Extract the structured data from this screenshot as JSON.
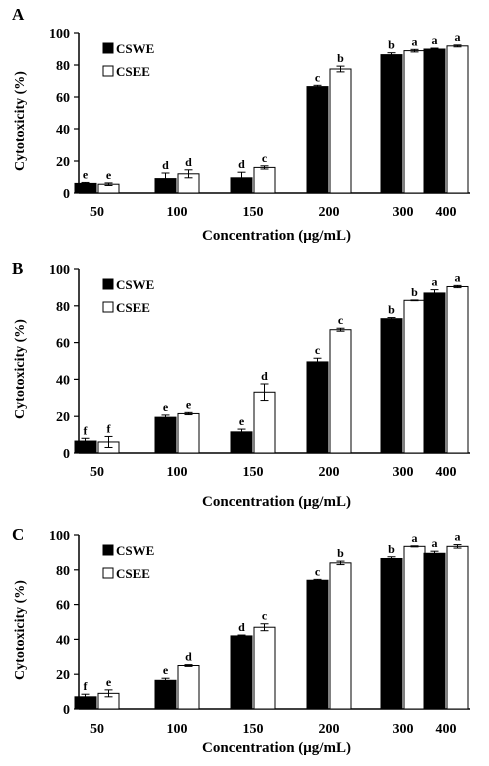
{
  "chart_data": [
    {
      "panel": "A",
      "type": "bar",
      "categories": [
        "50",
        "100",
        "150",
        "200",
        "300",
        "400"
      ],
      "series": [
        {
          "name": "CSWE",
          "color": "#000000",
          "values": [
            6,
            9,
            9.5,
            66.5,
            86.5,
            90
          ],
          "errors": [
            0.6,
            3.5,
            3.5,
            0.8,
            1.2,
            0.6
          ],
          "letters": [
            "e",
            "d",
            "d",
            "c",
            "b",
            "a"
          ]
        },
        {
          "name": "CSEE",
          "color": "#ffffff",
          "values": [
            5.5,
            12,
            16,
            77.5,
            89,
            92
          ],
          "errors": [
            0.8,
            2.5,
            1.0,
            1.8,
            0.8,
            0.6
          ],
          "letters": [
            "e",
            "d",
            "c",
            "b",
            "a",
            "a"
          ]
        }
      ],
      "xlabel": "Concentration (μg/mL)",
      "ylabel": "Cytotoxicity (%)",
      "ylim": [
        0,
        100
      ],
      "yticks": [
        "0",
        "20",
        "40",
        "60",
        "80",
        "100"
      ],
      "grid": false,
      "legend": "top-left"
    },
    {
      "panel": "B",
      "type": "bar",
      "categories": [
        "50",
        "100",
        "150",
        "200",
        "300",
        "400"
      ],
      "series": [
        {
          "name": "CSWE",
          "color": "#000000",
          "values": [
            6.5,
            19.5,
            11.5,
            49.5,
            73,
            87
          ],
          "errors": [
            1.5,
            1.2,
            1.5,
            2.0,
            0.6,
            1.8
          ],
          "letters": [
            "f",
            "e",
            "e",
            "c",
            "b",
            "a"
          ]
        },
        {
          "name": "CSEE",
          "color": "#ffffff",
          "values": [
            6,
            21.5,
            33,
            67,
            83,
            90.5
          ],
          "errors": [
            3.0,
            0.6,
            4.5,
            0.8,
            0.2,
            0.6
          ],
          "letters": [
            "f",
            "e",
            "d",
            "c",
            "b",
            "a"
          ]
        }
      ],
      "xlabel": "Concentration (μg/mL)",
      "ylabel": "Cytotoxicity (%)",
      "ylim": [
        0,
        100
      ],
      "yticks": [
        "0",
        "20",
        "40",
        "60",
        "80",
        "100"
      ],
      "grid": false,
      "legend": "top-left"
    },
    {
      "panel": "C",
      "type": "bar",
      "categories": [
        "50",
        "100",
        "150",
        "200",
        "300",
        "400"
      ],
      "series": [
        {
          "name": "CSWE",
          "color": "#000000",
          "values": [
            7,
            16.5,
            42,
            74,
            86.5,
            89.5
          ],
          "errors": [
            1.5,
            1.2,
            0.5,
            0.5,
            1.0,
            1.2
          ],
          "letters": [
            "f",
            "e",
            "d",
            "c",
            "b",
            "a"
          ]
        },
        {
          "name": "CSEE",
          "color": "#ffffff",
          "values": [
            9,
            25,
            47,
            84,
            93.5,
            93.5
          ],
          "errors": [
            2.0,
            0.5,
            2.0,
            1.0,
            0.3,
            1.0
          ],
          "letters": [
            "e",
            "d",
            "c",
            "b",
            "a",
            "a"
          ]
        }
      ],
      "xlabel": "Concentration (μg/mL)",
      "ylabel": "Cytotoxicity (%)",
      "ylim": [
        0,
        100
      ],
      "yticks": [
        "0",
        "20",
        "40",
        "60",
        "80",
        "100"
      ],
      "grid": false,
      "legend": "top-left"
    }
  ]
}
